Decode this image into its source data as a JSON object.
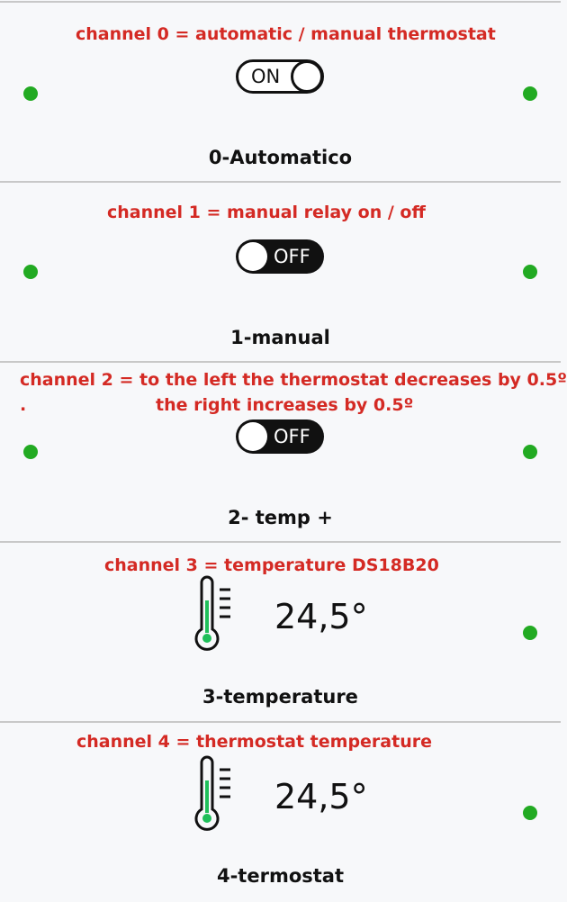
{
  "colors": {
    "annotation": "#d42a24",
    "status_dot": "#22aa22",
    "thermo_fill": "#1fbf5a"
  },
  "panels": [
    {
      "annotation": "channel 0 = automatic / manual thermostat",
      "toggle_label": "ON",
      "toggle_state": "on",
      "title": "0-Automatico"
    },
    {
      "annotation": "channel 1 = manual relay on / off",
      "toggle_label": "OFF",
      "toggle_state": "off",
      "title": "1-manual"
    },
    {
      "annotation_line1": "channel 2 = to the left the thermostat decreases by 0.5º",
      "annotation_line2": "the right increases by 0.5º",
      "annotation_bullet": ".",
      "toggle_label": "OFF",
      "toggle_state": "off",
      "title": "2- temp +"
    },
    {
      "annotation": "channel 3 = temperature DS18B20",
      "value": "24,5°",
      "icon": "thermometer-icon",
      "title": "3-temperature"
    },
    {
      "annotation": "channel 4 = thermostat temperature",
      "value": "24,5°",
      "icon": "thermometer-icon",
      "title": "4-termostat"
    }
  ]
}
